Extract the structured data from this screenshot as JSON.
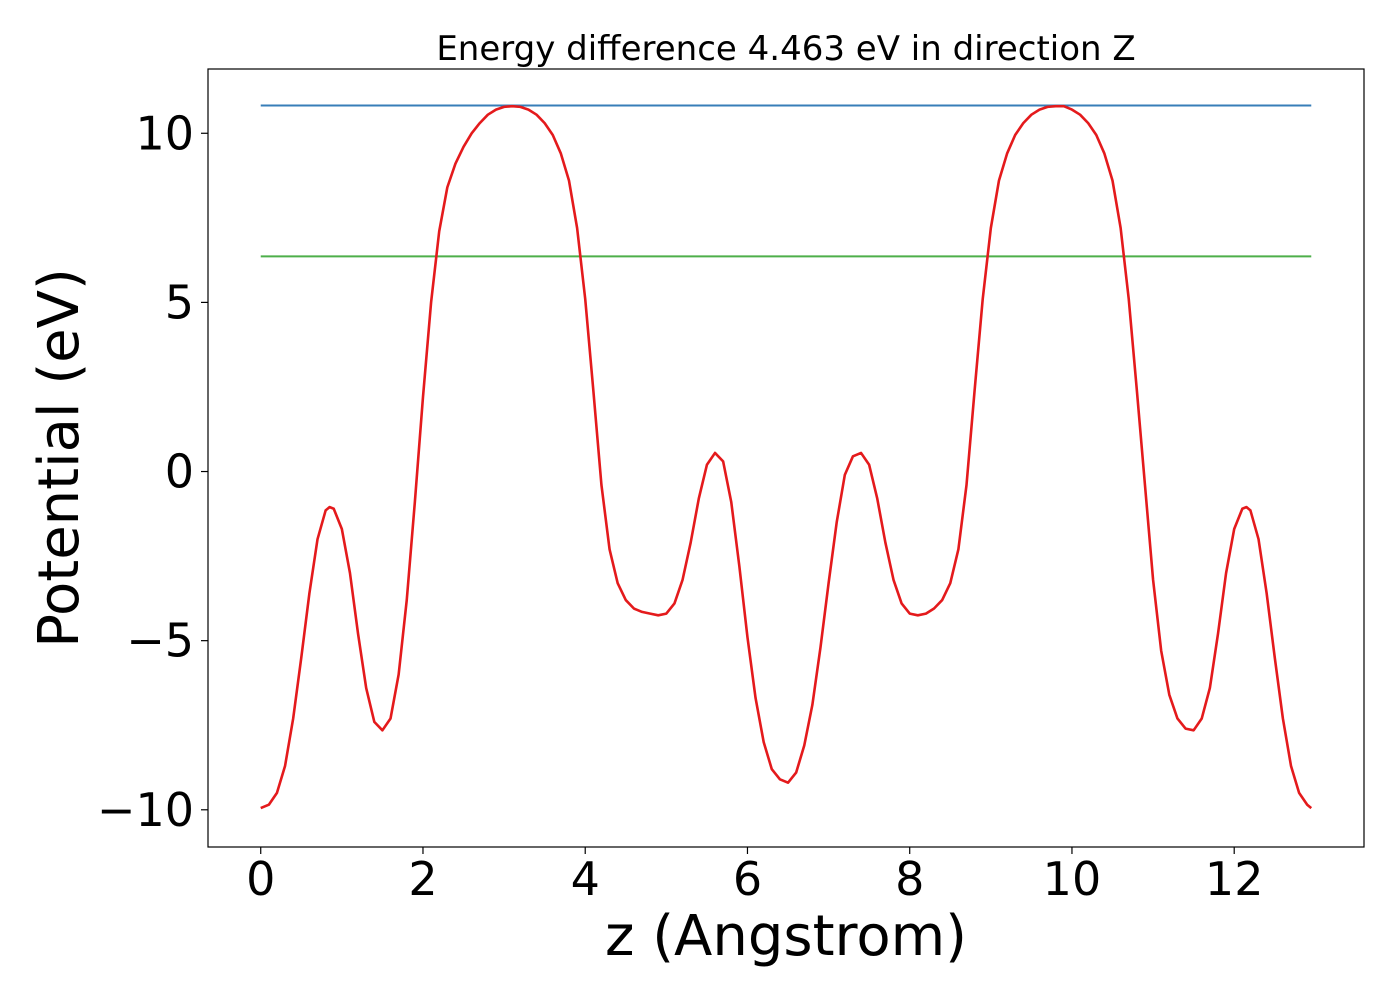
{
  "chart_data": {
    "type": "line",
    "title": "Energy difference 4.463 eV in direction Z",
    "xlabel": "z (Angstrom)",
    "ylabel": "Potential (eV)",
    "xlim": [
      -0.65,
      13.6
    ],
    "ylim": [
      -11.1,
      11.9
    ],
    "xticks": [
      0,
      2,
      4,
      6,
      8,
      10,
      12
    ],
    "yticks": [
      -10,
      -5,
      0,
      5,
      10
    ],
    "grid": false,
    "series": [
      {
        "color": "#e41a1c",
        "points": [
          [
            0.0,
            -9.95
          ],
          [
            0.1,
            -9.85
          ],
          [
            0.2,
            -9.5
          ],
          [
            0.3,
            -8.7
          ],
          [
            0.4,
            -7.3
          ],
          [
            0.5,
            -5.5
          ],
          [
            0.6,
            -3.6
          ],
          [
            0.7,
            -2.0
          ],
          [
            0.8,
            -1.15
          ],
          [
            0.85,
            -1.05
          ],
          [
            0.9,
            -1.1
          ],
          [
            1.0,
            -1.7
          ],
          [
            1.1,
            -3.0
          ],
          [
            1.2,
            -4.8
          ],
          [
            1.3,
            -6.4
          ],
          [
            1.4,
            -7.4
          ],
          [
            1.5,
            -7.65
          ],
          [
            1.6,
            -7.3
          ],
          [
            1.7,
            -6.0
          ],
          [
            1.8,
            -3.8
          ],
          [
            1.9,
            -0.9
          ],
          [
            2.0,
            2.2
          ],
          [
            2.1,
            5.0
          ],
          [
            2.2,
            7.1
          ],
          [
            2.3,
            8.4
          ],
          [
            2.4,
            9.1
          ],
          [
            2.5,
            9.6
          ],
          [
            2.6,
            10.0
          ],
          [
            2.7,
            10.3
          ],
          [
            2.8,
            10.55
          ],
          [
            2.9,
            10.7
          ],
          [
            3.0,
            10.78
          ],
          [
            3.1,
            10.8
          ],
          [
            3.2,
            10.78
          ],
          [
            3.3,
            10.7
          ],
          [
            3.4,
            10.55
          ],
          [
            3.5,
            10.3
          ],
          [
            3.6,
            9.95
          ],
          [
            3.7,
            9.4
          ],
          [
            3.8,
            8.6
          ],
          [
            3.9,
            7.2
          ],
          [
            4.0,
            5.1
          ],
          [
            4.1,
            2.4
          ],
          [
            4.2,
            -0.4
          ],
          [
            4.3,
            -2.3
          ],
          [
            4.4,
            -3.3
          ],
          [
            4.5,
            -3.8
          ],
          [
            4.6,
            -4.05
          ],
          [
            4.7,
            -4.15
          ],
          [
            4.8,
            -4.2
          ],
          [
            4.9,
            -4.25
          ],
          [
            5.0,
            -4.2
          ],
          [
            5.1,
            -3.9
          ],
          [
            5.2,
            -3.2
          ],
          [
            5.3,
            -2.1
          ],
          [
            5.4,
            -0.8
          ],
          [
            5.5,
            0.2
          ],
          [
            5.6,
            0.55
          ],
          [
            5.7,
            0.3
          ],
          [
            5.8,
            -0.9
          ],
          [
            5.9,
            -2.8
          ],
          [
            6.0,
            -4.9
          ],
          [
            6.1,
            -6.7
          ],
          [
            6.2,
            -8.0
          ],
          [
            6.3,
            -8.8
          ],
          [
            6.4,
            -9.1
          ],
          [
            6.5,
            -9.2
          ],
          [
            6.6,
            -8.9
          ],
          [
            6.7,
            -8.1
          ],
          [
            6.8,
            -6.9
          ],
          [
            6.9,
            -5.2
          ],
          [
            7.0,
            -3.3
          ],
          [
            7.1,
            -1.5
          ],
          [
            7.2,
            -0.1
          ],
          [
            7.3,
            0.45
          ],
          [
            7.4,
            0.55
          ],
          [
            7.5,
            0.2
          ],
          [
            7.6,
            -0.8
          ],
          [
            7.7,
            -2.1
          ],
          [
            7.8,
            -3.2
          ],
          [
            7.9,
            -3.9
          ],
          [
            8.0,
            -4.2
          ],
          [
            8.1,
            -4.25
          ],
          [
            8.2,
            -4.2
          ],
          [
            8.3,
            -4.05
          ],
          [
            8.4,
            -3.8
          ],
          [
            8.5,
            -3.3
          ],
          [
            8.6,
            -2.3
          ],
          [
            8.7,
            -0.4
          ],
          [
            8.8,
            2.4
          ],
          [
            8.9,
            5.1
          ],
          [
            9.0,
            7.2
          ],
          [
            9.1,
            8.6
          ],
          [
            9.2,
            9.4
          ],
          [
            9.3,
            9.95
          ],
          [
            9.4,
            10.3
          ],
          [
            9.5,
            10.55
          ],
          [
            9.6,
            10.7
          ],
          [
            9.7,
            10.78
          ],
          [
            9.8,
            10.8
          ],
          [
            9.9,
            10.8
          ],
          [
            10.0,
            10.7
          ],
          [
            10.1,
            10.55
          ],
          [
            10.2,
            10.3
          ],
          [
            10.3,
            9.95
          ],
          [
            10.4,
            9.4
          ],
          [
            10.5,
            8.6
          ],
          [
            10.6,
            7.2
          ],
          [
            10.7,
            5.1
          ],
          [
            10.8,
            2.4
          ],
          [
            10.9,
            -0.4
          ],
          [
            11.0,
            -3.2
          ],
          [
            11.1,
            -5.3
          ],
          [
            11.2,
            -6.6
          ],
          [
            11.3,
            -7.3
          ],
          [
            11.4,
            -7.6
          ],
          [
            11.5,
            -7.65
          ],
          [
            11.6,
            -7.3
          ],
          [
            11.7,
            -6.4
          ],
          [
            11.8,
            -4.8
          ],
          [
            11.9,
            -3.0
          ],
          [
            12.0,
            -1.7
          ],
          [
            12.1,
            -1.1
          ],
          [
            12.15,
            -1.05
          ],
          [
            12.2,
            -1.15
          ],
          [
            12.3,
            -2.0
          ],
          [
            12.4,
            -3.6
          ],
          [
            12.5,
            -5.5
          ],
          [
            12.6,
            -7.3
          ],
          [
            12.7,
            -8.7
          ],
          [
            12.8,
            -9.5
          ],
          [
            12.9,
            -9.85
          ],
          [
            12.95,
            -9.95
          ]
        ]
      }
    ],
    "hlines": [
      {
        "y": 10.82,
        "xmin": 0.0,
        "xmax": 12.95,
        "color": "#377eb8"
      },
      {
        "y": 6.36,
        "xmin": 0.0,
        "xmax": 12.95,
        "color": "#4daf4a"
      }
    ]
  }
}
